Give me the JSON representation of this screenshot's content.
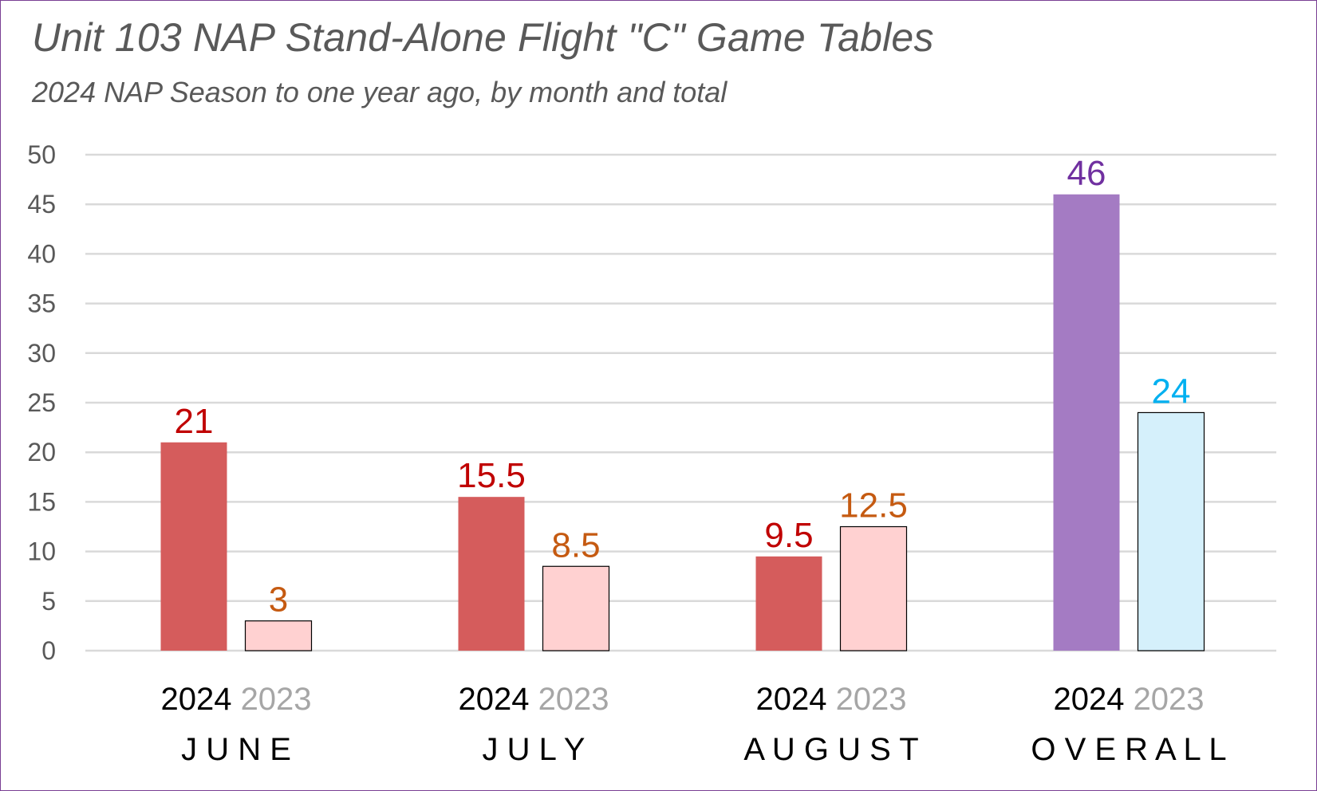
{
  "chart_data": {
    "type": "bar",
    "title": "Unit 103 NAP Stand-Alone Flight \"C\" Game Tables",
    "subtitle": "2024 NAP Season to one year ago, by month and total",
    "xlabel": "",
    "ylabel": "",
    "ylim": [
      0,
      50
    ],
    "yticks": [
      "0",
      "5",
      "10",
      "15",
      "20",
      "25",
      "30",
      "35",
      "40",
      "45",
      "50"
    ],
    "grid": true,
    "legend": "none",
    "categories": [
      "J U N E",
      "J U L Y",
      "A U G U S T",
      "O V E R A L L"
    ],
    "series_labels": [
      "2024",
      "2023"
    ],
    "groups": [
      {
        "category": "J U N E",
        "bars": [
          {
            "series": "2024",
            "value": 21,
            "label": "21",
            "fill": "#d55c5c",
            "stroke": "#d55c5c",
            "label_color": "#c00000"
          },
          {
            "series": "2023",
            "value": 3,
            "label": "3",
            "fill": "#ffd1d1",
            "stroke": "#000000",
            "label_color": "#c55a11"
          }
        ]
      },
      {
        "category": "J U L Y",
        "bars": [
          {
            "series": "2024",
            "value": 15.5,
            "label": "15.5",
            "fill": "#d55c5c",
            "stroke": "#d55c5c",
            "label_color": "#c00000"
          },
          {
            "series": "2023",
            "value": 8.5,
            "label": "8.5",
            "fill": "#ffd1d1",
            "stroke": "#000000",
            "label_color": "#c55a11"
          }
        ]
      },
      {
        "category": "A U G U S T",
        "bars": [
          {
            "series": "2024",
            "value": 9.5,
            "label": "9.5",
            "fill": "#d55c5c",
            "stroke": "#d55c5c",
            "label_color": "#c00000"
          },
          {
            "series": "2023",
            "value": 12.5,
            "label": "12.5",
            "fill": "#ffd1d1",
            "stroke": "#000000",
            "label_color": "#c55a11"
          }
        ]
      },
      {
        "category": "O V E R A L L",
        "bars": [
          {
            "series": "2024",
            "value": 46,
            "label": "46",
            "fill": "#a47bc3",
            "stroke": "#a47bc3",
            "label_color": "#7030a0"
          },
          {
            "series": "2023",
            "value": 24,
            "label": "24",
            "fill": "#d5f0fb",
            "stroke": "#000000",
            "label_color": "#00b0f0"
          }
        ]
      }
    ],
    "colors": {
      "series_label_2024": "#000000",
      "series_label_2023": "#a6a6a6",
      "gridline": "#d9d9d9",
      "axis_text": "#595959",
      "frame": "#7a3f93"
    }
  }
}
